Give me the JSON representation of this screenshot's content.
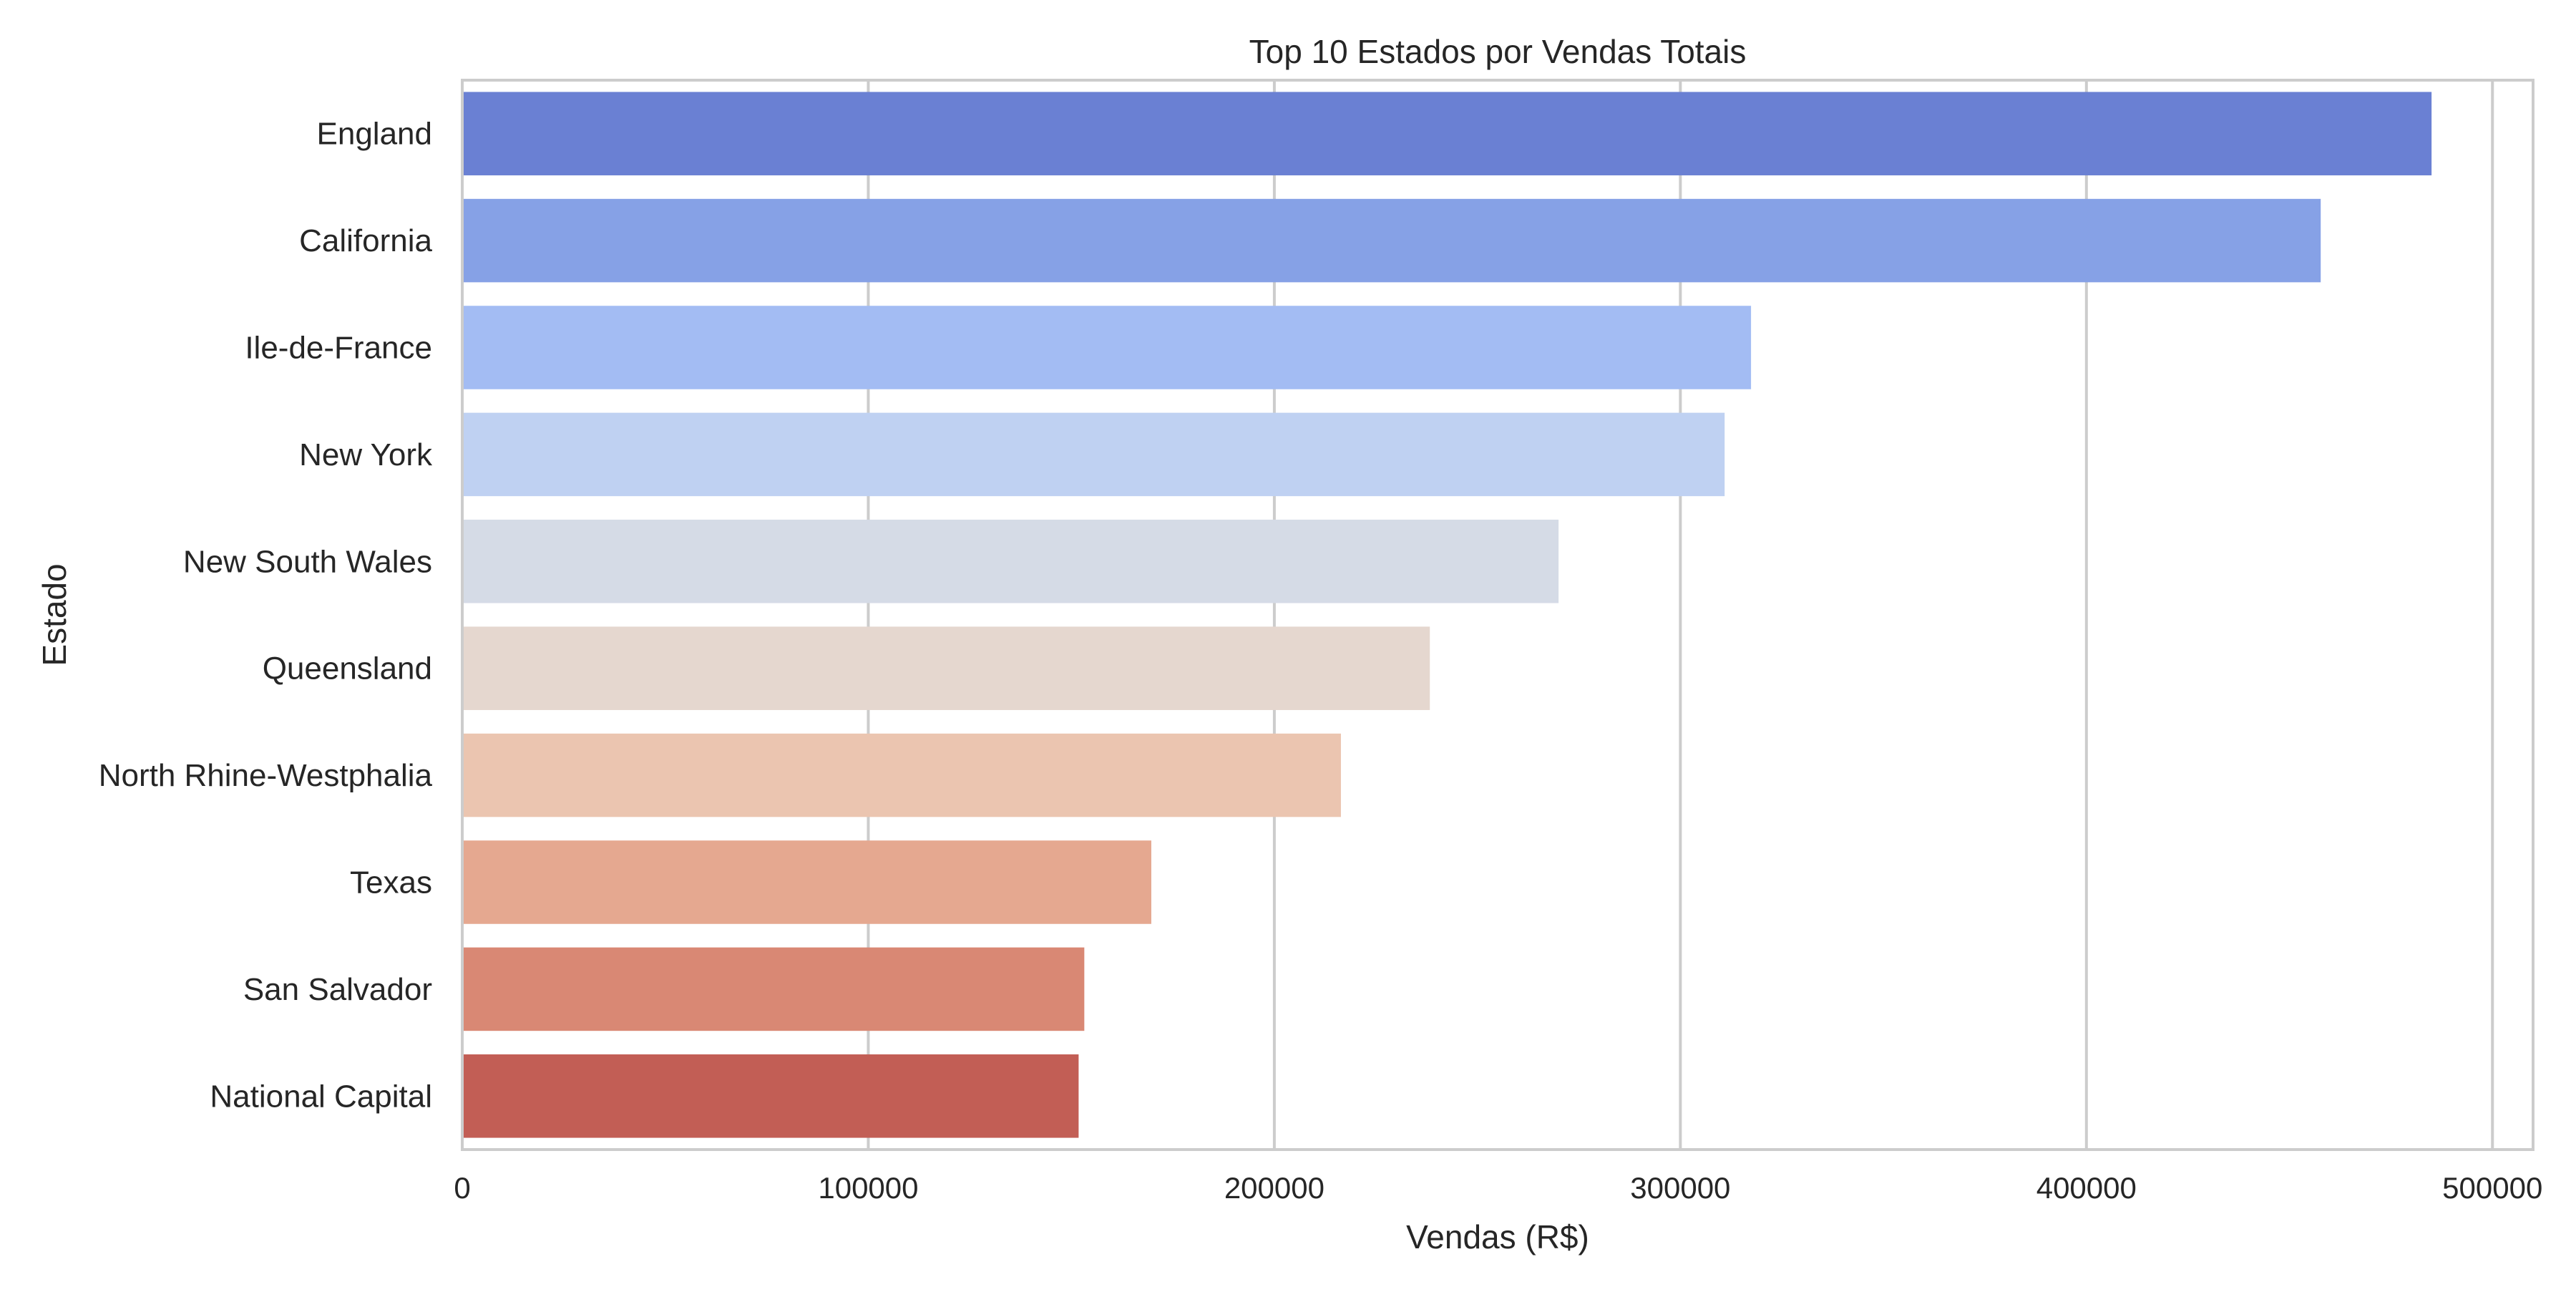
{
  "chart_data": {
    "type": "bar",
    "orientation": "horizontal",
    "title": "Top 10 Estados por Vendas Totais",
    "xlabel": "Vendas (R$)",
    "ylabel": "Estado",
    "categories": [
      "England",
      "California",
      "Ile-de-France",
      "New York",
      "New South Wales",
      "Queensland",
      "North Rhine-Westphalia",
      "Texas",
      "San Salvador",
      "National Capital"
    ],
    "values": [
      485000,
      457700,
      317400,
      310900,
      270000,
      238300,
      216400,
      169700,
      153200,
      151800
    ],
    "colors": [
      "#6a80d3",
      "#86a1e6",
      "#a3bcf3",
      "#bfd1f2",
      "#d5dbe6",
      "#e5d7cf",
      "#ebc5b0",
      "#e5a890",
      "#d98874",
      "#c25e55"
    ],
    "xlim": [
      0,
      510000
    ],
    "xticks": [
      0,
      100000,
      200000,
      300000,
      400000,
      500000
    ],
    "xtick_labels": [
      "0",
      "100000",
      "200000",
      "300000",
      "400000",
      "500000"
    ],
    "grid": true,
    "legend": "none"
  },
  "style": {
    "grid_color": "#cccccc",
    "frame_color": "#cccccc",
    "text_color": "#262626"
  }
}
